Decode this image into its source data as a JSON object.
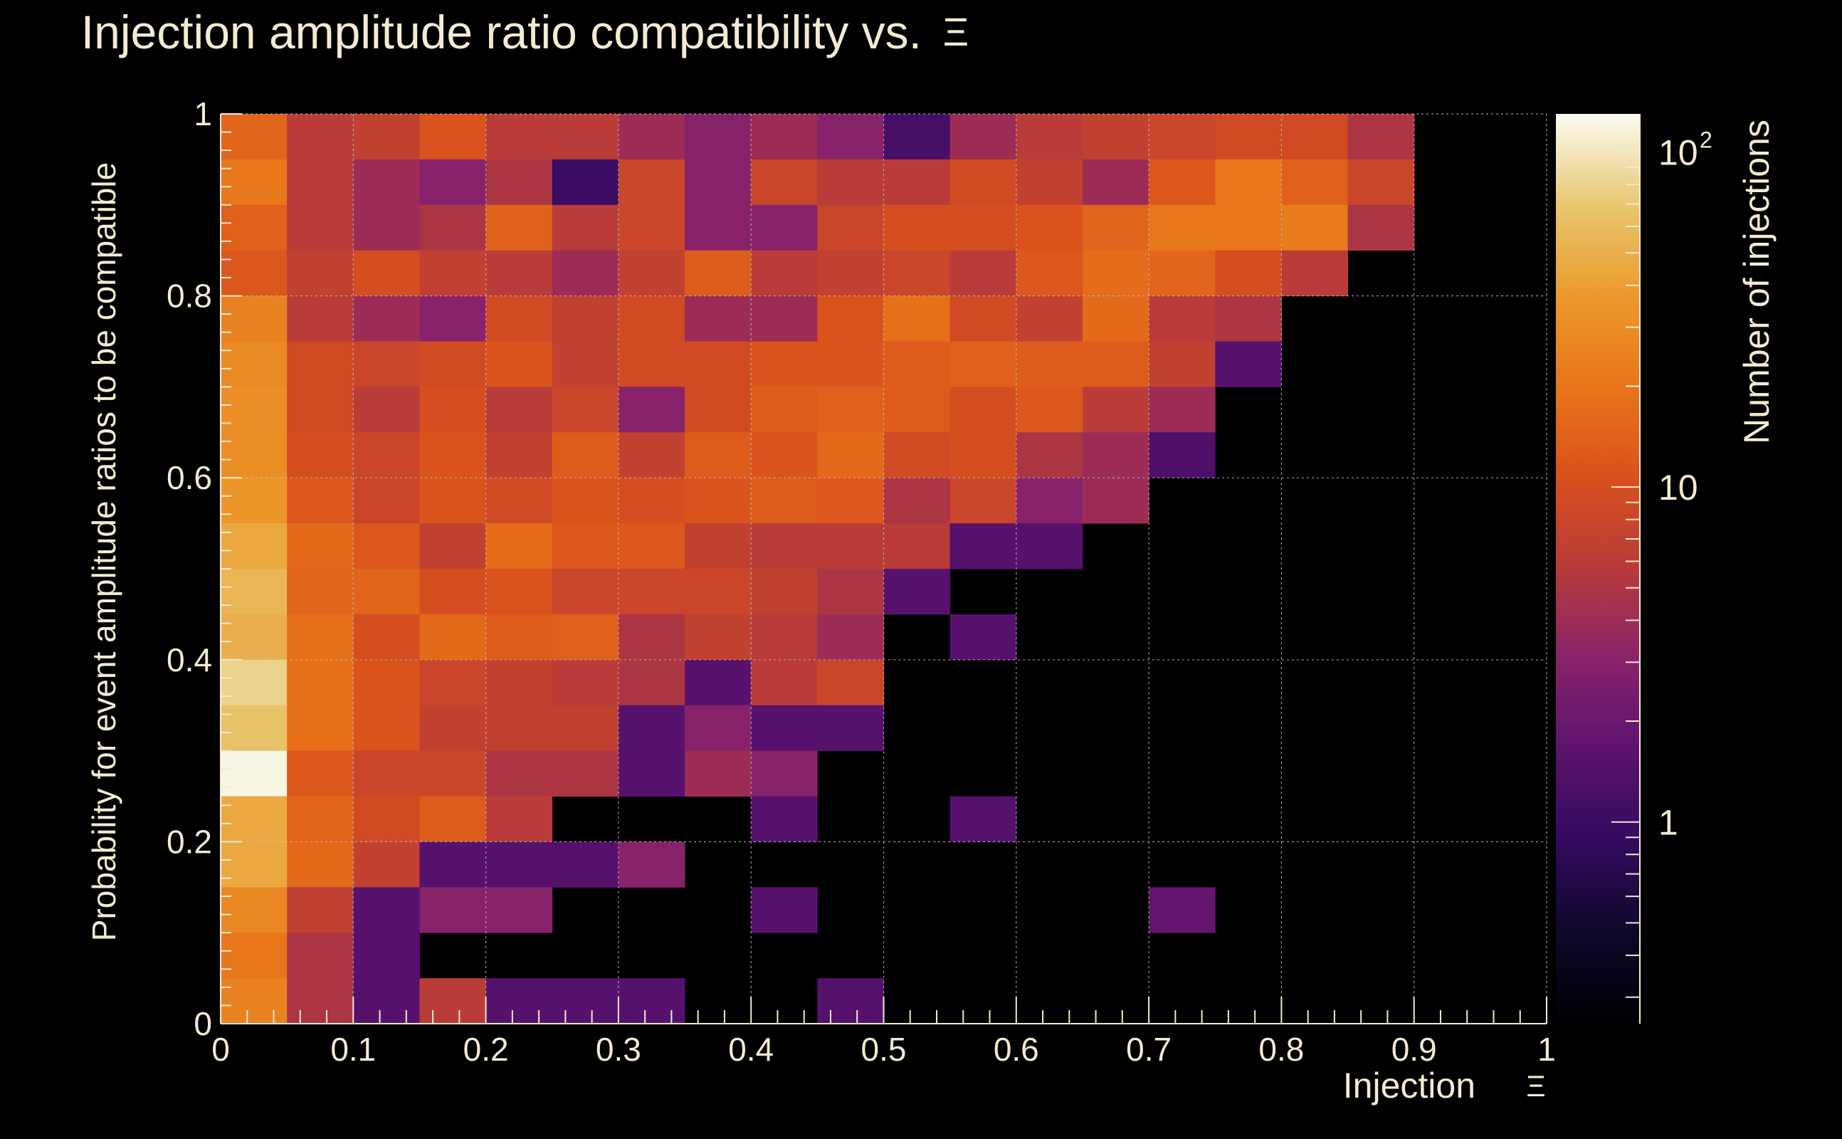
{
  "chart_data": {
    "type": "heatmap",
    "title": "Injection amplitude ratio compatibility vs.",
    "title_symbol": "Ξ",
    "xlabel": "Injection",
    "xlabel_symbol": "Ξ",
    "ylabel": "Probability for event amplitude ratios to be compatible",
    "zlabel": "Number of injections",
    "xlim": [
      0,
      1
    ],
    "ylim": [
      0,
      1
    ],
    "nx": 20,
    "ny": 20,
    "xticks": [
      0,
      0.1,
      0.2,
      0.3,
      0.4,
      0.5,
      0.6,
      0.7,
      0.8,
      0.9,
      1
    ],
    "xtick_labels": [
      "0",
      "0.1",
      "0.2",
      "0.3",
      "0.4",
      "0.5",
      "0.6",
      "0.7",
      "0.8",
      "0.9",
      "1"
    ],
    "yticks": [
      0,
      0.2,
      0.4,
      0.6,
      0.8,
      1
    ],
    "ytick_labels": [
      "0",
      "0.2",
      "0.4",
      "0.6",
      "0.8",
      "1"
    ],
    "zlim": [
      0.25,
      130
    ],
    "zscale": "log",
    "colorbar_ticks": [
      1,
      10,
      100
    ],
    "colorbar_labels": [
      "1",
      "10",
      "10"
    ],
    "colorbar_label_exp": [
      "",
      "",
      "2"
    ],
    "grid": true,
    "row_order": "bin rows listed from y=1 (top) down to y=0 (bottom); each row lists 20 x-bins from x=0 to x=1; 0 = empty bin",
    "counts": [
      [
        15,
        6,
        7,
        11,
        6,
        6,
        4,
        3,
        4,
        3,
        1.2,
        4,
        6,
        7,
        8,
        9,
        9,
        5,
        0,
        0
      ],
      [
        20,
        6,
        4,
        3,
        5,
        1,
        8,
        3,
        8,
        6,
        6,
        9,
        7,
        4,
        12,
        20,
        14,
        8,
        0,
        0
      ],
      [
        14,
        6,
        4,
        5,
        14,
        6,
        8,
        3,
        3,
        8,
        10,
        10,
        11,
        15,
        20,
        20,
        22,
        5,
        0,
        0
      ],
      [
        12,
        7,
        10,
        7,
        6,
        4,
        7,
        13,
        6,
        7,
        8,
        6,
        12,
        17,
        15,
        10,
        6,
        0,
        0,
        0
      ],
      [
        25,
        6,
        4,
        3,
        9,
        7,
        9,
        4,
        4,
        11,
        18,
        9,
        7,
        16,
        6,
        5,
        0,
        0,
        0,
        0
      ],
      [
        28,
        9,
        8,
        9,
        11,
        7,
        9,
        9,
        11,
        11,
        13,
        14,
        13,
        13,
        7,
        1.5,
        0,
        0,
        0,
        0
      ],
      [
        30,
        9,
        6,
        10,
        6,
        8,
        3,
        9,
        13,
        14,
        13,
        10,
        12,
        6,
        4,
        0,
        0,
        0,
        0,
        0
      ],
      [
        30,
        10,
        8,
        11,
        7,
        13,
        7,
        13,
        11,
        16,
        9,
        10,
        5,
        4,
        1.3,
        0,
        0,
        0,
        0,
        0
      ],
      [
        35,
        12,
        8,
        11,
        9,
        11,
        10,
        11,
        13,
        12,
        5,
        8,
        3,
        4,
        0,
        0,
        0,
        0,
        0,
        0
      ],
      [
        45,
        16,
        12,
        7,
        17,
        12,
        12,
        7,
        6,
        6,
        6,
        1.5,
        1.5,
        0,
        0,
        0,
        0,
        0,
        0,
        0
      ],
      [
        55,
        15,
        15,
        10,
        11,
        8,
        8,
        8,
        7,
        5,
        1.5,
        0,
        0,
        0,
        0,
        0,
        0,
        0,
        0,
        0
      ],
      [
        50,
        18,
        10,
        16,
        13,
        14,
        5,
        7,
        6,
        4,
        0,
        1.5,
        0,
        0,
        0,
        0,
        0,
        0,
        0,
        0
      ],
      [
        80,
        18,
        11,
        8,
        7,
        6,
        5,
        1.5,
        6,
        8,
        0,
        0,
        0,
        0,
        0,
        0,
        0,
        0,
        0,
        0
      ],
      [
        65,
        18,
        11,
        7,
        7,
        7,
        1.5,
        3,
        1.5,
        1.5,
        0,
        0,
        0,
        0,
        0,
        0,
        0,
        0,
        0,
        0
      ],
      [
        120,
        12,
        8,
        8,
        5,
        5,
        1.5,
        4,
        3,
        0,
        0,
        0,
        0,
        0,
        0,
        0,
        0,
        0,
        0,
        0
      ],
      [
        45,
        15,
        9,
        13,
        6,
        0,
        0,
        0,
        1.5,
        0,
        0,
        1.5,
        0,
        0,
        0,
        0,
        0,
        0,
        0,
        0
      ],
      [
        45,
        16,
        7,
        1.5,
        1.5,
        1.5,
        3,
        0,
        0,
        0,
        0,
        0,
        0,
        0,
        0,
        0,
        0,
        0,
        0,
        0
      ],
      [
        27,
        7,
        1.5,
        3,
        3,
        0,
        0,
        0,
        1.5,
        0,
        0,
        0,
        0,
        0,
        1.8,
        0,
        0,
        0,
        0,
        0
      ],
      [
        20,
        5,
        1.5,
        0,
        0,
        0,
        0,
        0,
        0,
        0,
        0,
        0,
        0,
        0,
        0,
        0,
        0,
        0,
        0,
        0
      ],
      [
        25,
        5,
        1.5,
        6,
        1.5,
        1.5,
        1.5,
        0,
        0,
        1.5,
        0,
        0,
        0,
        0,
        0,
        0,
        0,
        0,
        0,
        0
      ]
    ]
  }
}
